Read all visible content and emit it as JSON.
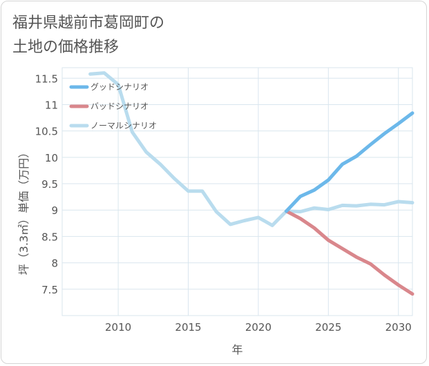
{
  "title": {
    "line1": "福井県越前市葛岡町の",
    "line2": "土地の価格推移"
  },
  "chart_data": {
    "type": "line",
    "xlabel": "年",
    "ylabel": "坪（3.3㎡）単価（万円）",
    "xlim": [
      2006,
      2031
    ],
    "ylim": [
      7.0,
      11.7
    ],
    "xticks": [
      2010,
      2015,
      2020,
      2025,
      2030
    ],
    "xtick_labels": [
      "2010",
      "2015",
      "2020",
      "2025",
      "2030"
    ],
    "yticks": [
      7.5,
      8,
      8.5,
      9,
      9.5,
      10,
      10.5,
      11,
      11.5
    ],
    "ytick_labels": [
      "7.5",
      "8",
      "8.5",
      "9",
      "9.5",
      "10",
      "10.5",
      "11",
      "11.5"
    ],
    "legend_position": "top-left",
    "series": [
      {
        "name": "グッドシナリオ",
        "color": "#6cb8ea",
        "x": [
          2022,
          2023,
          2024,
          2025,
          2026,
          2027,
          2028,
          2029,
          2030,
          2031
        ],
        "y": [
          8.98,
          9.26,
          9.38,
          9.57,
          9.87,
          10.02,
          10.24,
          10.45,
          10.64,
          10.84
        ]
      },
      {
        "name": "バッドシナリオ",
        "color": "#d9878c",
        "x": [
          2022,
          2023,
          2024,
          2025,
          2026,
          2027,
          2028,
          2029,
          2030,
          2031
        ],
        "y": [
          8.98,
          8.84,
          8.66,
          8.43,
          8.27,
          8.11,
          7.98,
          7.77,
          7.58,
          7.41
        ]
      },
      {
        "name": "ノーマルシナリオ",
        "color": "#b9dcee",
        "x": [
          2008,
          2009,
          2010,
          2011,
          2012,
          2013,
          2014,
          2015,
          2016,
          2017,
          2018,
          2019,
          2020,
          2021,
          2022,
          2023,
          2024,
          2025,
          2026,
          2027,
          2028,
          2029,
          2030,
          2031
        ],
        "y": [
          11.58,
          11.6,
          11.38,
          10.48,
          10.1,
          9.87,
          9.6,
          9.36,
          9.36,
          8.97,
          8.73,
          8.8,
          8.86,
          8.71,
          8.98,
          8.97,
          9.04,
          9.01,
          9.09,
          9.08,
          9.11,
          9.1,
          9.16,
          9.14
        ]
      }
    ]
  }
}
